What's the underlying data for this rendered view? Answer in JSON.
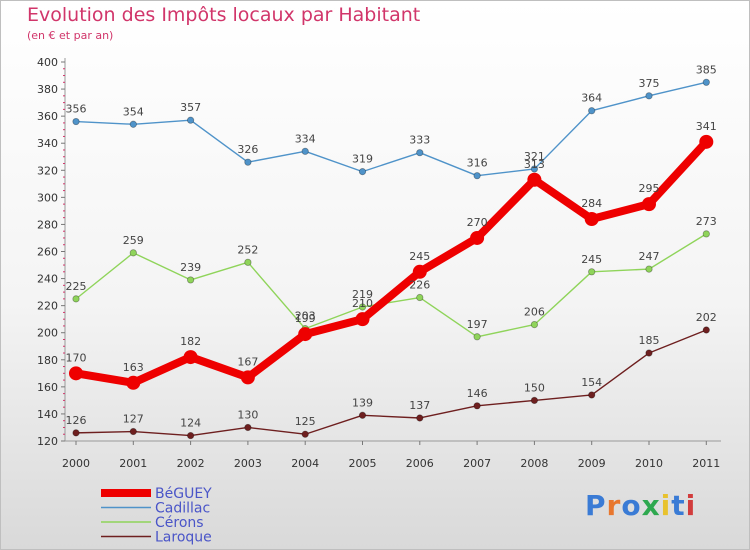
{
  "header": {
    "title": "Evolution des Impôts locaux par Habitant",
    "subtitle": "(en € et par an)"
  },
  "logo": {
    "text": "Proxiti",
    "colors": [
      "#3a7bd5",
      "#e8772e",
      "#3a7bd5",
      "#2ea84f",
      "#e8c22e",
      "#3a7bd5",
      "#d23c3c"
    ]
  },
  "chart_data": {
    "type": "line",
    "x": [
      "2000",
      "2001",
      "2002",
      "2003",
      "2004",
      "2005",
      "2006",
      "2007",
      "2008",
      "2009",
      "2010",
      "2011"
    ],
    "ylim": [
      120,
      400
    ],
    "yticks": [
      120,
      140,
      160,
      180,
      200,
      220,
      240,
      260,
      280,
      300,
      320,
      340,
      360,
      380,
      400
    ],
    "grid": false,
    "legend": "bottom-left",
    "series": [
      {
        "name": "Cadillac",
        "color": "#4f93c9",
        "values": [
          356,
          354,
          357,
          326,
          334,
          319,
          333,
          316,
          321,
          364,
          375,
          385
        ]
      },
      {
        "name": "Cérons",
        "color": "#8fd45a",
        "values": [
          225,
          259,
          239,
          252,
          203,
          219,
          226,
          197,
          206,
          245,
          247,
          273
        ]
      },
      {
        "name": "Laroque",
        "color": "#6e1f1f",
        "values": [
          126,
          127,
          124,
          130,
          125,
          139,
          137,
          146,
          150,
          154,
          185,
          202
        ]
      },
      {
        "name": "BéGUEY",
        "color": "#ee0000",
        "values": [
          170,
          163,
          182,
          167,
          199,
          210,
          245,
          270,
          313,
          284,
          295,
          341
        ]
      }
    ],
    "legend_order": [
      "BéGUEY",
      "Cadillac",
      "Cérons",
      "Laroque"
    ]
  }
}
